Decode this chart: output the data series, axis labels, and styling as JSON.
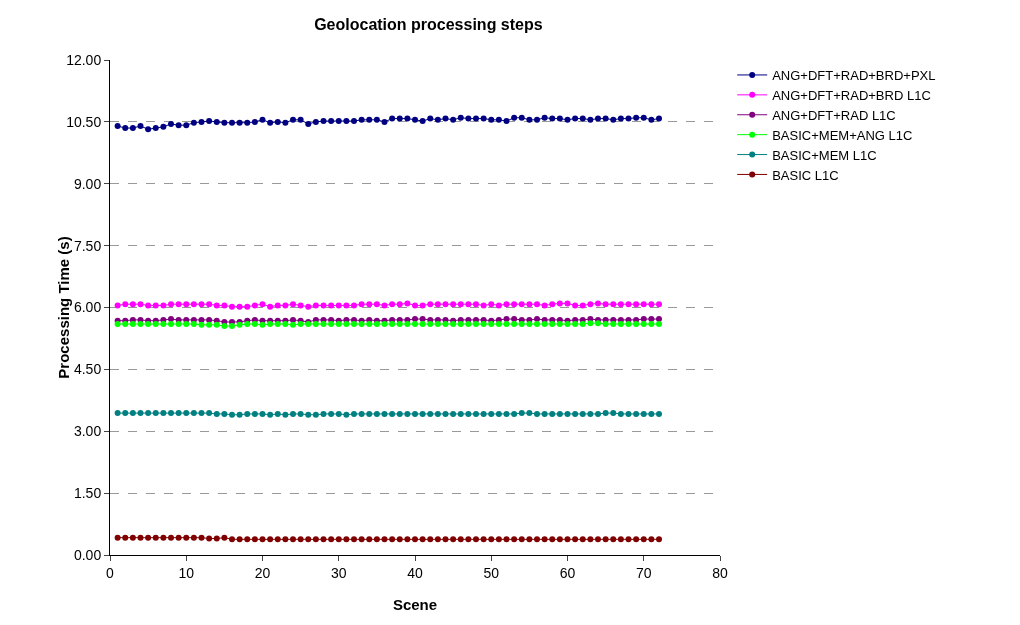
{
  "chart_data": {
    "type": "line",
    "title": "Geolocation processing steps",
    "xlabel": "Scene",
    "ylabel": "Processing Time (s)",
    "x": [
      1,
      2,
      3,
      4,
      5,
      6,
      7,
      8,
      9,
      10,
      11,
      12,
      13,
      14,
      15,
      16,
      17,
      18,
      19,
      20,
      21,
      22,
      23,
      24,
      25,
      26,
      27,
      28,
      29,
      30,
      31,
      32,
      33,
      34,
      35,
      36,
      37,
      38,
      39,
      40,
      41,
      42,
      43,
      44,
      45,
      46,
      47,
      48,
      49,
      50,
      51,
      52,
      53,
      54,
      55,
      56,
      57,
      58,
      59,
      60,
      61,
      62,
      63,
      64,
      65,
      66,
      67,
      68,
      69,
      70,
      71,
      72
    ],
    "xlim": [
      0,
      80
    ],
    "xticks": [
      0,
      10,
      20,
      30,
      40,
      50,
      60,
      70,
      80
    ],
    "ylim": [
      0,
      12
    ],
    "yticks": [
      {
        "value": 0,
        "label": "0.00"
      },
      {
        "value": 1.5,
        "label": "1.50"
      },
      {
        "value": 3,
        "label": "3.00"
      },
      {
        "value": 4.5,
        "label": "4.50"
      },
      {
        "value": 6,
        "label": "6.00"
      },
      {
        "value": 7.5,
        "label": "7.50"
      },
      {
        "value": 9,
        "label": "9.00"
      },
      {
        "value": 10.5,
        "label": "10.50"
      },
      {
        "value": 12,
        "label": "12.00"
      }
    ],
    "grid": "y",
    "legend": "right",
    "marker": "circle",
    "line_style": "solid",
    "series": [
      {
        "name": "ANG+DFT+RAD+BRD+PXL",
        "color": "#000080",
        "values": [
          10.4,
          10.35,
          10.35,
          10.4,
          10.32,
          10.35,
          10.38,
          10.45,
          10.42,
          10.42,
          10.48,
          10.5,
          10.52,
          10.5,
          10.48,
          10.48,
          10.48,
          10.48,
          10.5,
          10.55,
          10.48,
          10.5,
          10.48,
          10.55,
          10.55,
          10.45,
          10.5,
          10.52,
          10.52,
          10.52,
          10.52,
          10.52,
          10.55,
          10.55,
          10.55,
          10.5,
          10.58,
          10.58,
          10.58,
          10.55,
          10.52,
          10.58,
          10.55,
          10.58,
          10.55,
          10.6,
          10.58,
          10.58,
          10.58,
          10.55,
          10.55,
          10.52,
          10.6,
          10.6,
          10.55,
          10.55,
          10.6,
          10.58,
          10.58,
          10.55,
          10.58,
          10.58,
          10.55,
          10.58,
          10.58,
          10.55,
          10.58,
          10.58,
          10.6,
          10.6,
          10.55,
          10.58
        ]
      },
      {
        "name": "ANG+DFT+RAD+BRD L1C",
        "color": "#ff00ff",
        "values": [
          6.05,
          6.08,
          6.08,
          6.08,
          6.05,
          6.05,
          6.05,
          6.08,
          6.08,
          6.08,
          6.08,
          6.08,
          6.08,
          6.05,
          6.05,
          6.02,
          6.02,
          6.02,
          6.05,
          6.08,
          6.02,
          6.05,
          6.05,
          6.08,
          6.05,
          6.02,
          6.05,
          6.05,
          6.05,
          6.05,
          6.05,
          6.05,
          6.08,
          6.08,
          6.08,
          6.05,
          6.08,
          6.08,
          6.1,
          6.05,
          6.05,
          6.08,
          6.08,
          6.08,
          6.08,
          6.08,
          6.08,
          6.08,
          6.05,
          6.08,
          6.05,
          6.08,
          6.08,
          6.08,
          6.08,
          6.08,
          6.05,
          6.08,
          6.1,
          6.1,
          6.05,
          6.05,
          6.08,
          6.1,
          6.08,
          6.08,
          6.08,
          6.08,
          6.08,
          6.08,
          6.08,
          6.08
        ]
      },
      {
        "name": "ANG+DFT+RAD L1C",
        "color": "#800080",
        "values": [
          5.68,
          5.68,
          5.7,
          5.7,
          5.68,
          5.68,
          5.7,
          5.72,
          5.7,
          5.7,
          5.7,
          5.7,
          5.7,
          5.68,
          5.65,
          5.65,
          5.65,
          5.68,
          5.7,
          5.68,
          5.68,
          5.68,
          5.68,
          5.7,
          5.68,
          5.65,
          5.7,
          5.7,
          5.7,
          5.68,
          5.7,
          5.7,
          5.68,
          5.7,
          5.68,
          5.68,
          5.7,
          5.7,
          5.7,
          5.72,
          5.72,
          5.7,
          5.7,
          5.7,
          5.68,
          5.7,
          5.7,
          5.7,
          5.7,
          5.68,
          5.7,
          5.72,
          5.72,
          5.7,
          5.7,
          5.72,
          5.7,
          5.7,
          5.7,
          5.68,
          5.7,
          5.7,
          5.72,
          5.7,
          5.7,
          5.7,
          5.7,
          5.7,
          5.7,
          5.72,
          5.72,
          5.72
        ]
      },
      {
        "name": "BASIC+MEM+ANG L1C",
        "color": "#00ff00",
        "values": [
          5.6,
          5.6,
          5.6,
          5.6,
          5.6,
          5.6,
          5.6,
          5.6,
          5.6,
          5.6,
          5.6,
          5.58,
          5.58,
          5.58,
          5.55,
          5.55,
          5.58,
          5.6,
          5.6,
          5.58,
          5.6,
          5.6,
          5.6,
          5.58,
          5.6,
          5.6,
          5.6,
          5.6,
          5.6,
          5.6,
          5.6,
          5.6,
          5.6,
          5.6,
          5.6,
          5.6,
          5.6,
          5.6,
          5.6,
          5.6,
          5.6,
          5.6,
          5.6,
          5.6,
          5.6,
          5.6,
          5.6,
          5.6,
          5.6,
          5.6,
          5.6,
          5.6,
          5.6,
          5.6,
          5.6,
          5.6,
          5.6,
          5.6,
          5.6,
          5.6,
          5.6,
          5.6,
          5.62,
          5.62,
          5.6,
          5.6,
          5.6,
          5.6,
          5.6,
          5.6,
          5.6,
          5.6
        ]
      },
      {
        "name": "BASIC+MEM L1C",
        "color": "#008080",
        "values": [
          3.44,
          3.44,
          3.44,
          3.44,
          3.44,
          3.44,
          3.44,
          3.44,
          3.44,
          3.44,
          3.44,
          3.44,
          3.44,
          3.42,
          3.42,
          3.4,
          3.4,
          3.42,
          3.42,
          3.42,
          3.4,
          3.42,
          3.4,
          3.42,
          3.42,
          3.4,
          3.4,
          3.42,
          3.42,
          3.42,
          3.4,
          3.42,
          3.42,
          3.42,
          3.42,
          3.42,
          3.42,
          3.42,
          3.42,
          3.42,
          3.42,
          3.42,
          3.42,
          3.42,
          3.42,
          3.42,
          3.42,
          3.42,
          3.42,
          3.42,
          3.42,
          3.42,
          3.42,
          3.44,
          3.44,
          3.42,
          3.42,
          3.42,
          3.42,
          3.42,
          3.42,
          3.42,
          3.42,
          3.42,
          3.44,
          3.44,
          3.42,
          3.42,
          3.42,
          3.42,
          3.42,
          3.42
        ]
      },
      {
        "name": "BASIC L1C",
        "color": "#800000",
        "values": [
          0.42,
          0.42,
          0.42,
          0.42,
          0.42,
          0.42,
          0.42,
          0.42,
          0.42,
          0.42,
          0.42,
          0.42,
          0.4,
          0.4,
          0.42,
          0.38,
          0.38,
          0.38,
          0.38,
          0.38,
          0.38,
          0.38,
          0.38,
          0.38,
          0.38,
          0.38,
          0.38,
          0.38,
          0.38,
          0.38,
          0.38,
          0.38,
          0.38,
          0.38,
          0.38,
          0.38,
          0.38,
          0.38,
          0.38,
          0.38,
          0.38,
          0.38,
          0.38,
          0.38,
          0.38,
          0.38,
          0.38,
          0.38,
          0.38,
          0.38,
          0.38,
          0.38,
          0.38,
          0.38,
          0.38,
          0.38,
          0.38,
          0.38,
          0.38,
          0.38,
          0.38,
          0.38,
          0.38,
          0.38,
          0.38,
          0.38,
          0.38,
          0.38,
          0.38,
          0.38,
          0.38,
          0.38
        ]
      }
    ]
  }
}
